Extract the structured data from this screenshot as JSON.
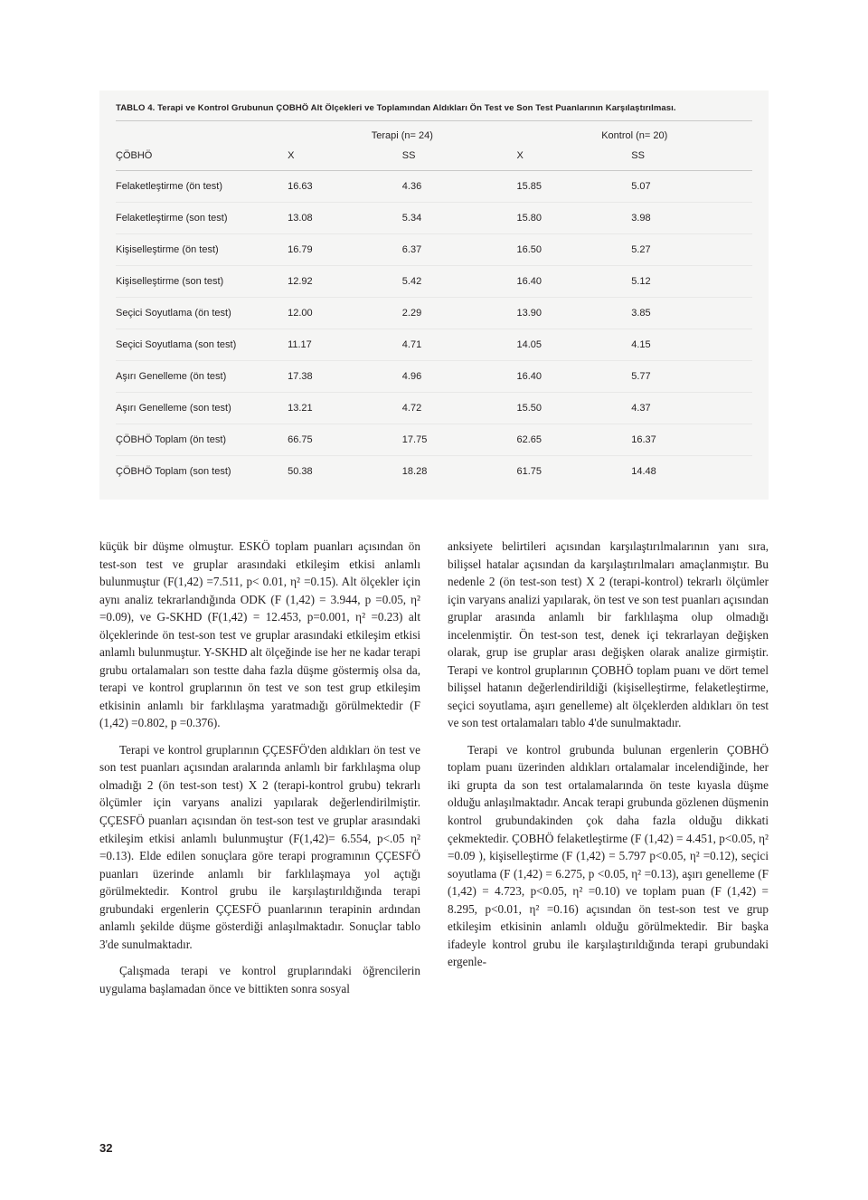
{
  "table": {
    "caption_label": "TABLO 4.",
    "caption_text": " Terapi ve Kontrol Grubunun ÇOBHÖ Alt Ölçekleri ve Toplamından Aldıkları Ön Test ve Son Test Puanlarının Karşılaştırılması.",
    "group1": "Terapi (n= 24)",
    "group2": "Kontrol (n= 20)",
    "head_col1": "ÇÖBHÖ",
    "head_col2": "X",
    "head_col3": "SS",
    "head_col4": "X",
    "head_col5": "SS",
    "rows": [
      {
        "label": "Felaketleştirme (ön test)",
        "c2": "16.63",
        "c3": "4.36",
        "c4": "15.85",
        "c5": "5.07"
      },
      {
        "label": "Felaketleştirme (son test)",
        "c2": "13.08",
        "c3": "5.34",
        "c4": "15.80",
        "c5": "3.98"
      },
      {
        "label": "Kişiselleştirme (ön test)",
        "c2": "16.79",
        "c3": "6.37",
        "c4": "16.50",
        "c5": "5.27"
      },
      {
        "label": "Kişiselleştirme (son test)",
        "c2": "12.92",
        "c3": "5.42",
        "c4": "16.40",
        "c5": "5.12"
      },
      {
        "label": "Seçici Soyutlama (ön test)",
        "c2": "12.00",
        "c3": "2.29",
        "c4": "13.90",
        "c5": "3.85"
      },
      {
        "label": "Seçici Soyutlama (son test)",
        "c2": "11.17",
        "c3": "4.71",
        "c4": "14.05",
        "c5": "4.15"
      },
      {
        "label": "Aşırı Genelleme (ön test)",
        "c2": "17.38",
        "c3": "4.96",
        "c4": "16.40",
        "c5": "5.77"
      },
      {
        "label": "Aşırı Genelleme (son test)",
        "c2": "13.21",
        "c3": "4.72",
        "c4": "15.50",
        "c5": "4.37"
      },
      {
        "label": "ÇÖBHÖ Toplam (ön test)",
        "c2": "66.75",
        "c3": "17.75",
        "c4": "62.65",
        "c5": "16.37"
      },
      {
        "label": "ÇÖBHÖ Toplam (son test)",
        "c2": "50.38",
        "c3": "18.28",
        "c4": "61.75",
        "c5": "14.48"
      }
    ]
  },
  "left_col": {
    "p1": "küçük bir düşme olmuştur. ESKÖ toplam puanları açısından ön test-son test ve gruplar arasındaki etkileşim etkisi anlamlı bulunmuştur (F(1,42) =7.511, p< 0.01, η² =0.15). Alt ölçekler için aynı analiz tekrarlandığında ODK (F (1,42) = 3.944, p =0.05, η² =0.09), ve G-SKHD (F(1,42) = 12.453, p=0.001, η² =0.23) alt ölçeklerinde ön test-son test ve gruplar arasındaki etkileşim etkisi anlamlı bulunmuştur. Y-SKHD alt ölçeğinde ise her ne kadar terapi grubu ortalamaları son testte daha fazla düşme göstermiş olsa da, terapi ve kontrol gruplarının ön test ve son test grup etkileşim etkisinin anlamlı bir farklılaşma yaratmadığı görülmektedir (F (1,42) =0.802, p =0.376).",
    "p2": "Terapi ve kontrol gruplarının ÇÇESFÖ'den aldıkları ön test ve son test puanları açısından aralarında anlamlı bir farklılaşma olup olmadığı 2 (ön test-son test) X 2 (terapi-kontrol grubu) tekrarlı ölçümler için varyans analizi yapılarak değerlendirilmiştir. ÇÇESFÖ puanları açısından ön test-son test ve gruplar arasındaki etkileşim etkisi anlamlı bulunmuştur (F(1,42)= 6.554, p<.05 η² =0.13). Elde edilen sonuçlara göre terapi programının ÇÇESFÖ puanları üzerinde anlamlı bir farklılaşmaya yol açtığı görülmektedir. Kontrol grubu ile karşılaştırıldığında terapi grubundaki ergenlerin ÇÇESFÖ puanlarının terapinin ardından anlamlı şekilde düşme gösterdiği anlaşılmaktadır. Sonuçlar tablo 3'de sunulmaktadır.",
    "p3": "Çalışmada terapi ve kontrol gruplarındaki öğrencilerin uygulama başlamadan önce ve bittikten sonra sosyal"
  },
  "right_col": {
    "p1": "anksiyete belirtileri açısından karşılaştırılmalarının yanı sıra, bilişsel hatalar açısından da karşılaştırılmaları amaçlanmıştır. Bu nedenle 2 (ön test-son test) X 2 (terapi-kontrol) tekrarlı ölçümler için varyans analizi yapılarak, ön test ve son test puanları açısından gruplar arasında anlamlı bir farklılaşma olup olmadığı incelenmiştir. Ön test-son test, denek içi tekrarlayan değişken olarak, grup ise gruplar arası değişken olarak analize girmiştir. Terapi ve kontrol gruplarının ÇOBHÖ toplam puanı ve dört temel bilişsel hatanın değerlendirildiği (kişiselleştirme, felaketleştirme, seçici soyutlama, aşırı genelleme) alt ölçeklerden aldıkları ön test ve son test ortalamaları tablo 4'de sunulmaktadır.",
    "p2": "Terapi ve kontrol grubunda bulunan ergenlerin ÇOBHÖ toplam puanı üzerinden aldıkları ortalamalar incelendiğinde, her iki grupta da son test ortalamalarında ön teste kıyasla düşme olduğu anlaşılmaktadır. Ancak terapi grubunda gözlenen düşmenin kontrol grubundakinden çok daha fazla olduğu dikkati çekmektedir. ÇOBHÖ felaketleştirme (F (1,42) = 4.451, p<0.05, η² =0.09 ), kişiselleştirme (F (1,42) = 5.797 p<0.05, η² =0.12), seçici soyutlama (F (1,42) = 6.275, p <0.05, η² =0.13), aşırı genelleme (F (1,42) = 4.723, p<0.05, η² =0.10) ve toplam puan (F (1,42) = 8.295, p<0.01, η² =0.16) açısından ön test-son test ve grup etkileşim etkisinin anlamlı olduğu görülmektedir. Bir başka ifadeyle kontrol grubu ile karşılaştırıldığında terapi grubundaki ergenle-"
  },
  "page_num": "32"
}
